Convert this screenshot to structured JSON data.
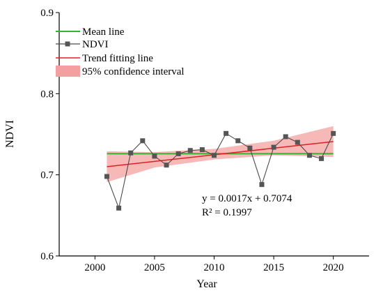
{
  "chart_data": {
    "type": "line",
    "xlabel": "Year",
    "ylabel": "NDVI",
    "xlim": [
      1997,
      2023
    ],
    "ylim": [
      0.6,
      0.9
    ],
    "xticks": [
      2000,
      2005,
      2010,
      2015,
      2020
    ],
    "yticks": [
      0.6,
      0.7,
      0.8,
      0.9
    ],
    "ytick_labels": [
      "0.6",
      "0.7",
      "0.8",
      "0.9"
    ],
    "legend_position": "top-left",
    "legend": [
      {
        "key": "mean",
        "label": "Mean line"
      },
      {
        "key": "ndvi",
        "label": "NDVI"
      },
      {
        "key": "trend",
        "label": "Trend fitting line"
      },
      {
        "key": "ci",
        "label": "95% confidence interval"
      }
    ],
    "colors": {
      "mean": "#2db82d",
      "ndvi_line": "#4a4a4a",
      "ndvi_marker": "#555555",
      "trend": "#e02020",
      "ci_fill": "#f4a0a0"
    },
    "series": {
      "ndvi": {
        "x": [
          2001,
          2002,
          2003,
          2004,
          2005,
          2006,
          2007,
          2008,
          2009,
          2010,
          2011,
          2012,
          2013,
          2014,
          2015,
          2016,
          2017,
          2018,
          2019,
          2020
        ],
        "y": [
          0.698,
          0.659,
          0.727,
          0.742,
          0.723,
          0.712,
          0.726,
          0.73,
          0.731,
          0.724,
          0.751,
          0.742,
          0.733,
          0.688,
          0.734,
          0.747,
          0.74,
          0.724,
          0.72,
          0.751
        ]
      },
      "mean": {
        "x": [
          2001,
          2020
        ],
        "y": [
          0.726,
          0.726
        ]
      },
      "trend": {
        "x": [
          2001,
          2020
        ],
        "y": [
          0.71,
          0.741
        ]
      },
      "ci": {
        "x": [
          2001,
          2005,
          2010,
          2015,
          2020
        ],
        "upper": [
          0.729,
          0.728,
          0.732,
          0.742,
          0.76
        ],
        "lower": [
          0.691,
          0.709,
          0.719,
          0.724,
          0.722
        ]
      }
    },
    "annotation": {
      "equation": "y = 0.0017x + 0.7074",
      "r2": "R² = 0.1997"
    }
  }
}
